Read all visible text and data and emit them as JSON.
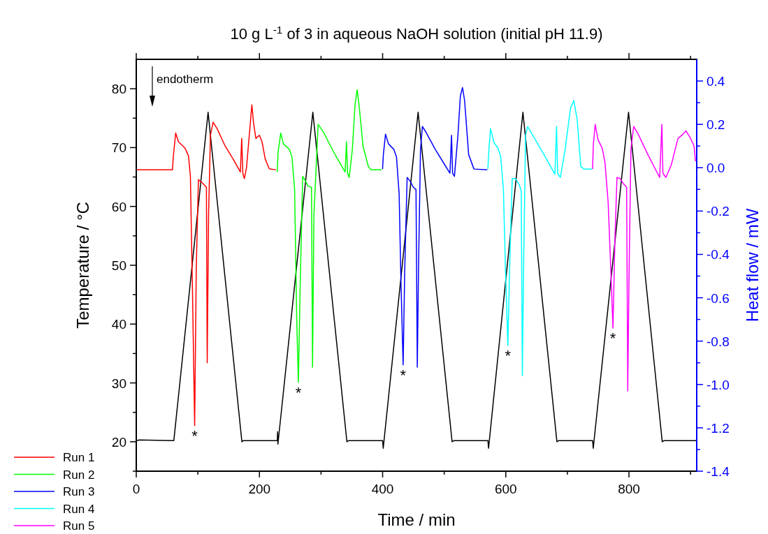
{
  "chart_data": {
    "type": "line",
    "title": "10 g L$^{-1}$ of 3 in aqueous NaOH solution (initial pH 11.9)",
    "xlabel": "Time / min",
    "ylabel": "Temperature / °C",
    "y2label": "Heat flow / mW",
    "xlim": [
      0,
      910
    ],
    "xticks": [
      0,
      {
        "value": 100,
        "label": null
      },
      200,
      {
        "value": 300,
        "label": null
      },
      400,
      {
        "value": 500,
        "label": null
      },
      600,
      {
        "value": 700,
        "label": null
      },
      800,
      {
        "value": 900,
        "label": null
      }
    ],
    "ylim": [
      15,
      85
    ],
    "yticks": [
      {
        "value": 15,
        "label": null
      },
      20,
      {
        "value": 25,
        "label": null
      },
      30,
      {
        "value": 35,
        "label": null
      },
      40,
      {
        "value": 45,
        "label": null
      },
      50,
      {
        "value": 55,
        "label": null
      },
      60,
      {
        "value": 65,
        "label": null
      },
      70,
      {
        "value": 75,
        "label": null
      },
      80
    ],
    "y2lim": [
      -1.4,
      0.5
    ],
    "y2ticks": [
      -1.4,
      {
        "value": -1.3,
        "label": null
      },
      -1.2,
      {
        "value": -1.1,
        "label": null
      },
      {
        "value": -1.0,
        "label": "-1.0"
      },
      {
        "value": -0.9,
        "label": null
      },
      -0.8,
      {
        "value": -0.7,
        "label": null
      },
      -0.6,
      {
        "value": -0.5,
        "label": null
      },
      -0.4,
      {
        "value": -0.3,
        "label": null
      },
      -0.2,
      {
        "value": -0.1,
        "label": null
      },
      {
        "value": 0,
        "label": "0.0"
      },
      {
        "value": 0.1,
        "label": null
      },
      0.2,
      {
        "value": 0.3,
        "label": null
      },
      0.4
    ],
    "legend": "bottom left",
    "annotations": [
      "endotherm",
      "*",
      "*",
      "*",
      "*",
      "*"
    ],
    "series": [
      {
        "color": "#000000",
        "x": [
          0,
          5,
          61,
          116.6,
          171.5,
          174,
          229,
          229.5,
          230,
          286.7,
          342,
          345,
          400,
          401,
          457.6,
          512.8,
          516,
          571,
          572,
          627.8,
          683,
          686,
          741,
          742,
          799.3,
          854,
          857,
          910
        ],
        "values": [
          20.2,
          20.3,
          20.2,
          76,
          20,
          20.2,
          20.2,
          21.7,
          19.6,
          76,
          20,
          20.2,
          20.2,
          18.9,
          76,
          20,
          20.2,
          20.2,
          18.9,
          76,
          20,
          20.2,
          20.2,
          18.9,
          76,
          20,
          20.2,
          20.2
        ]
      },
      {
        "name": "Run 1",
        "color": "#ff0000",
        "axis": "y2",
        "x": [
          0.2,
          5.4,
          58.8,
          60.1,
          64,
          68.4,
          79.2,
          84.8,
          87.9,
          91.4,
          94.8,
          97.4,
          100.9,
          107.4,
          113.9,
          115.2,
          117.4,
          120.4,
          124.8,
          131.3,
          144.3,
          157.3,
          169,
          171.2,
          173,
          175.5,
          179,
          187.7,
          190.3,
          194.2,
          199.9,
          204.2,
          209.4,
          215.9,
          226.8
        ],
        "values": [
          -0.01,
          -0.01,
          -0.01,
          0.05,
          0.16,
          0.12,
          0.09,
          0.055,
          -0.04,
          -0.59,
          -1.19,
          -0.47,
          -0.055,
          -0.07,
          -0.09,
          -0.9,
          -0.22,
          0.15,
          0.21,
          0.18,
          0.1,
          0.04,
          -0.02,
          0.135,
          -0.025,
          -0.05,
          0,
          0.29,
          0.21,
          0.135,
          0.15,
          0.12,
          0.04,
          -0.005,
          -0.01
        ]
      },
      {
        "name": "Run 2",
        "color": "#00ff00",
        "axis": "y2",
        "x": [
          228.9,
          230.2,
          234.6,
          238.9,
          248.5,
          252.8,
          257.1,
          260.6,
          263.2,
          265.8,
          270.2,
          274.5,
          278.8,
          284.5,
          286.2,
          288.4,
          295.3,
          304.9,
          311.8,
          324.8,
          339.1,
          341.3,
          343.1,
          345.7,
          350.9,
          355.2,
          358.7,
          361.7,
          368.2,
          376.9,
          381.2,
          398.6
        ],
        "values": [
          -0.02,
          0.07,
          0.16,
          0.11,
          0.085,
          0.05,
          -0.1,
          -0.71,
          -0.99,
          -0.59,
          -0.04,
          -0.06,
          -0.085,
          -0.09,
          -0.92,
          -0.22,
          0.2,
          0.16,
          0.12,
          0.05,
          -0.02,
          0.12,
          -0.025,
          -0.045,
          0.085,
          0.29,
          0.36,
          0.29,
          0.1,
          0.005,
          -0.01,
          -0.01
        ]
      },
      {
        "name": "Run 3",
        "color": "#0000ff",
        "axis": "y2",
        "x": [
          399.9,
          401.2,
          404.7,
          409.5,
          418.1,
          422.5,
          426.8,
          429.8,
          433.3,
          435.9,
          439.8,
          444.2,
          449.8,
          454.2,
          456.3,
          458.5,
          461.5,
          464.6,
          470.2,
          485.4,
          498.4,
          509.3,
          511.9,
          513.6,
          516.6,
          522.3,
          526.2,
          529.7,
          533.1,
          539.7,
          548.3,
          570
        ],
        "values": [
          -0.006,
          0.06,
          0.155,
          0.11,
          0.085,
          0.05,
          -0.12,
          -0.53,
          -0.91,
          -0.47,
          -0.045,
          -0.06,
          -0.09,
          -0.1,
          -0.92,
          -0.42,
          0.085,
          0.19,
          0.165,
          0.085,
          0.025,
          -0.025,
          0.15,
          -0.025,
          -0.04,
          0.15,
          0.33,
          0.37,
          0.31,
          0.06,
          -0.006,
          -0.01
        ]
      },
      {
        "name": "Run 4",
        "color": "#00ffff",
        "axis": "y2",
        "x": [
          570.9,
          572.6,
          575.2,
          580.9,
          587.4,
          591.7,
          596.1,
          599.5,
          603.4,
          606.1,
          610.4,
          615.6,
          622.1,
          625.1,
          626.9,
          629.1,
          632.1,
          635.6,
          641.6,
          659,
          679.8,
          682.4,
          684.2,
          688.6,
          696.4,
          705.1,
          710.4,
          716,
          721.7,
          726.9,
          740
        ],
        "values": [
          -0.006,
          0.085,
          0.18,
          0.115,
          0.09,
          0.05,
          -0.1,
          -0.47,
          -0.82,
          -0.47,
          -0.05,
          -0.05,
          -0.08,
          -0.11,
          -0.96,
          -0.42,
          0.15,
          0.19,
          0.16,
          0.075,
          -0.03,
          0.19,
          -0.025,
          -0.045,
          0.085,
          0.275,
          0.31,
          0.22,
          0.006,
          -0.006,
          -0.006
        ]
      },
      {
        "name": "Run 5",
        "color": "#ff00ff",
        "axis": "y2",
        "x": [
          740.9,
          742.2,
          745.2,
          749.6,
          756.6,
          761,
          766.2,
          770.5,
          774,
          777.1,
          780.5,
          785.8,
          791.4,
          796.2,
          798,
          800.2,
          803.2,
          807.6,
          814.1,
          831.6,
          849.9,
          853.4,
          855.1,
          859.9,
          868.6,
          879.5,
          886,
          892.6,
          899.1,
          905.7,
          908
        ],
        "values": [
          -0.006,
          0.11,
          0.2,
          0.13,
          0.09,
          0.025,
          -0.16,
          -0.47,
          -0.74,
          -0.34,
          -0.045,
          -0.05,
          -0.075,
          -0.09,
          -1.03,
          -0.47,
          0.085,
          0.19,
          0.16,
          0.055,
          -0.045,
          0.2,
          -0.025,
          -0.045,
          0.012,
          0.135,
          0.15,
          0.17,
          0.14,
          0.1,
          0.03
        ]
      }
    ]
  }
}
